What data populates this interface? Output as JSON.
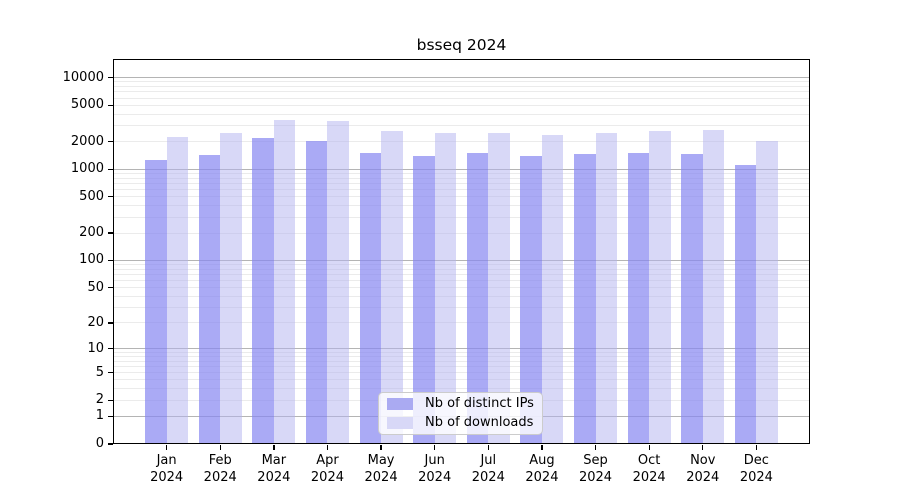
{
  "title": "bsseq 2024",
  "chart_data": {
    "type": "bar",
    "title": "bsseq 2024",
    "categories": [
      "Jan",
      "Feb",
      "Mar",
      "Apr",
      "May",
      "Jun",
      "Jul",
      "Aug",
      "Sep",
      "Oct",
      "Nov",
      "Dec"
    ],
    "year": "2024",
    "series": [
      {
        "name": "Nb of distinct IPs",
        "color": "#aaaaf2",
        "fill": "rgba(134,134,241,0.7)",
        "values": [
          1270,
          1420,
          2190,
          2060,
          1500,
          1380,
          1500,
          1380,
          1480,
          1500,
          1460,
          1120
        ]
      },
      {
        "name": "Nb of downloads",
        "color": "#d8d8f7",
        "fill": "rgba(177,177,239,0.5)",
        "values": [
          2250,
          2490,
          3480,
          3330,
          2590,
          2490,
          2490,
          2340,
          2490,
          2590,
          2700,
          2060
        ]
      }
    ],
    "xlabel": "",
    "ylabel": "",
    "yscale": "log1p",
    "ylim": [
      0,
      16000
    ],
    "yticks": [
      0,
      1,
      2,
      5,
      10,
      20,
      50,
      100,
      200,
      500,
      1000,
      2000,
      5000,
      10000
    ],
    "grid": "on",
    "legend_position": "lower center"
  },
  "colors": {
    "major_grid": "#b4b4b4",
    "minor_grid": "#ebebeb",
    "axis": "#000000",
    "legend_border": "#cccccc",
    "background": "#ffffff"
  }
}
